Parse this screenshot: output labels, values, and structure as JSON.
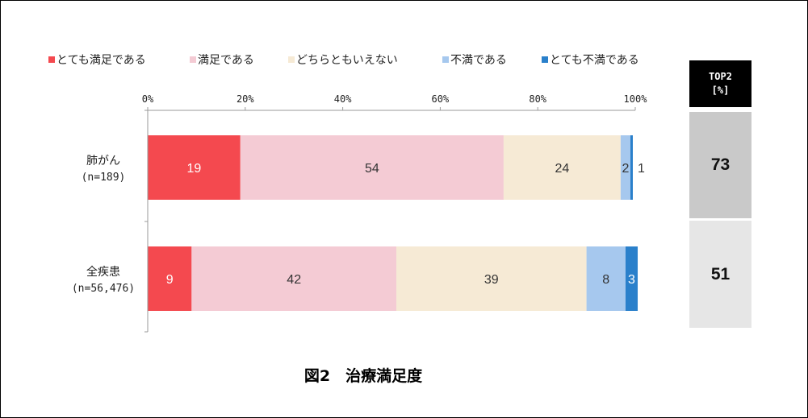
{
  "caption": "図2　治療満足度",
  "top2": {
    "header_line1": "TOP2",
    "header_line2": "[%]",
    "values": [
      "73",
      "51"
    ]
  },
  "chart_data": {
    "type": "bar",
    "orientation": "horizontal",
    "stacked": true,
    "categories": [
      {
        "name": "肺がん",
        "sub": "(n=189)"
      },
      {
        "name": "全疾患",
        "sub": "(n=56,476)"
      }
    ],
    "series": [
      {
        "name": "とても満足である",
        "color": "#f4494f",
        "values": [
          19,
          9
        ]
      },
      {
        "name": "満足である",
        "color": "#f4cbd4",
        "values": [
          54,
          42
        ]
      },
      {
        "name": "どちらともいえない",
        "color": "#f6ead5",
        "values": [
          24,
          39
        ]
      },
      {
        "name": "不満である",
        "color": "#a6c8ee",
        "values": [
          2,
          8
        ]
      },
      {
        "name": "とても不満である",
        "color": "#2a80cb",
        "values": [
          0.5,
          2.5
        ]
      }
    ],
    "data_labels": [
      [
        "19",
        "54",
        "24",
        "2",
        "1"
      ],
      [
        "9",
        "42",
        "39",
        "8",
        "3"
      ]
    ],
    "xlim": [
      0,
      100
    ],
    "x_ticks": [
      "0%",
      "20%",
      "40%",
      "60%",
      "80%",
      "100%"
    ],
    "legend_position": "top",
    "grid": false
  }
}
